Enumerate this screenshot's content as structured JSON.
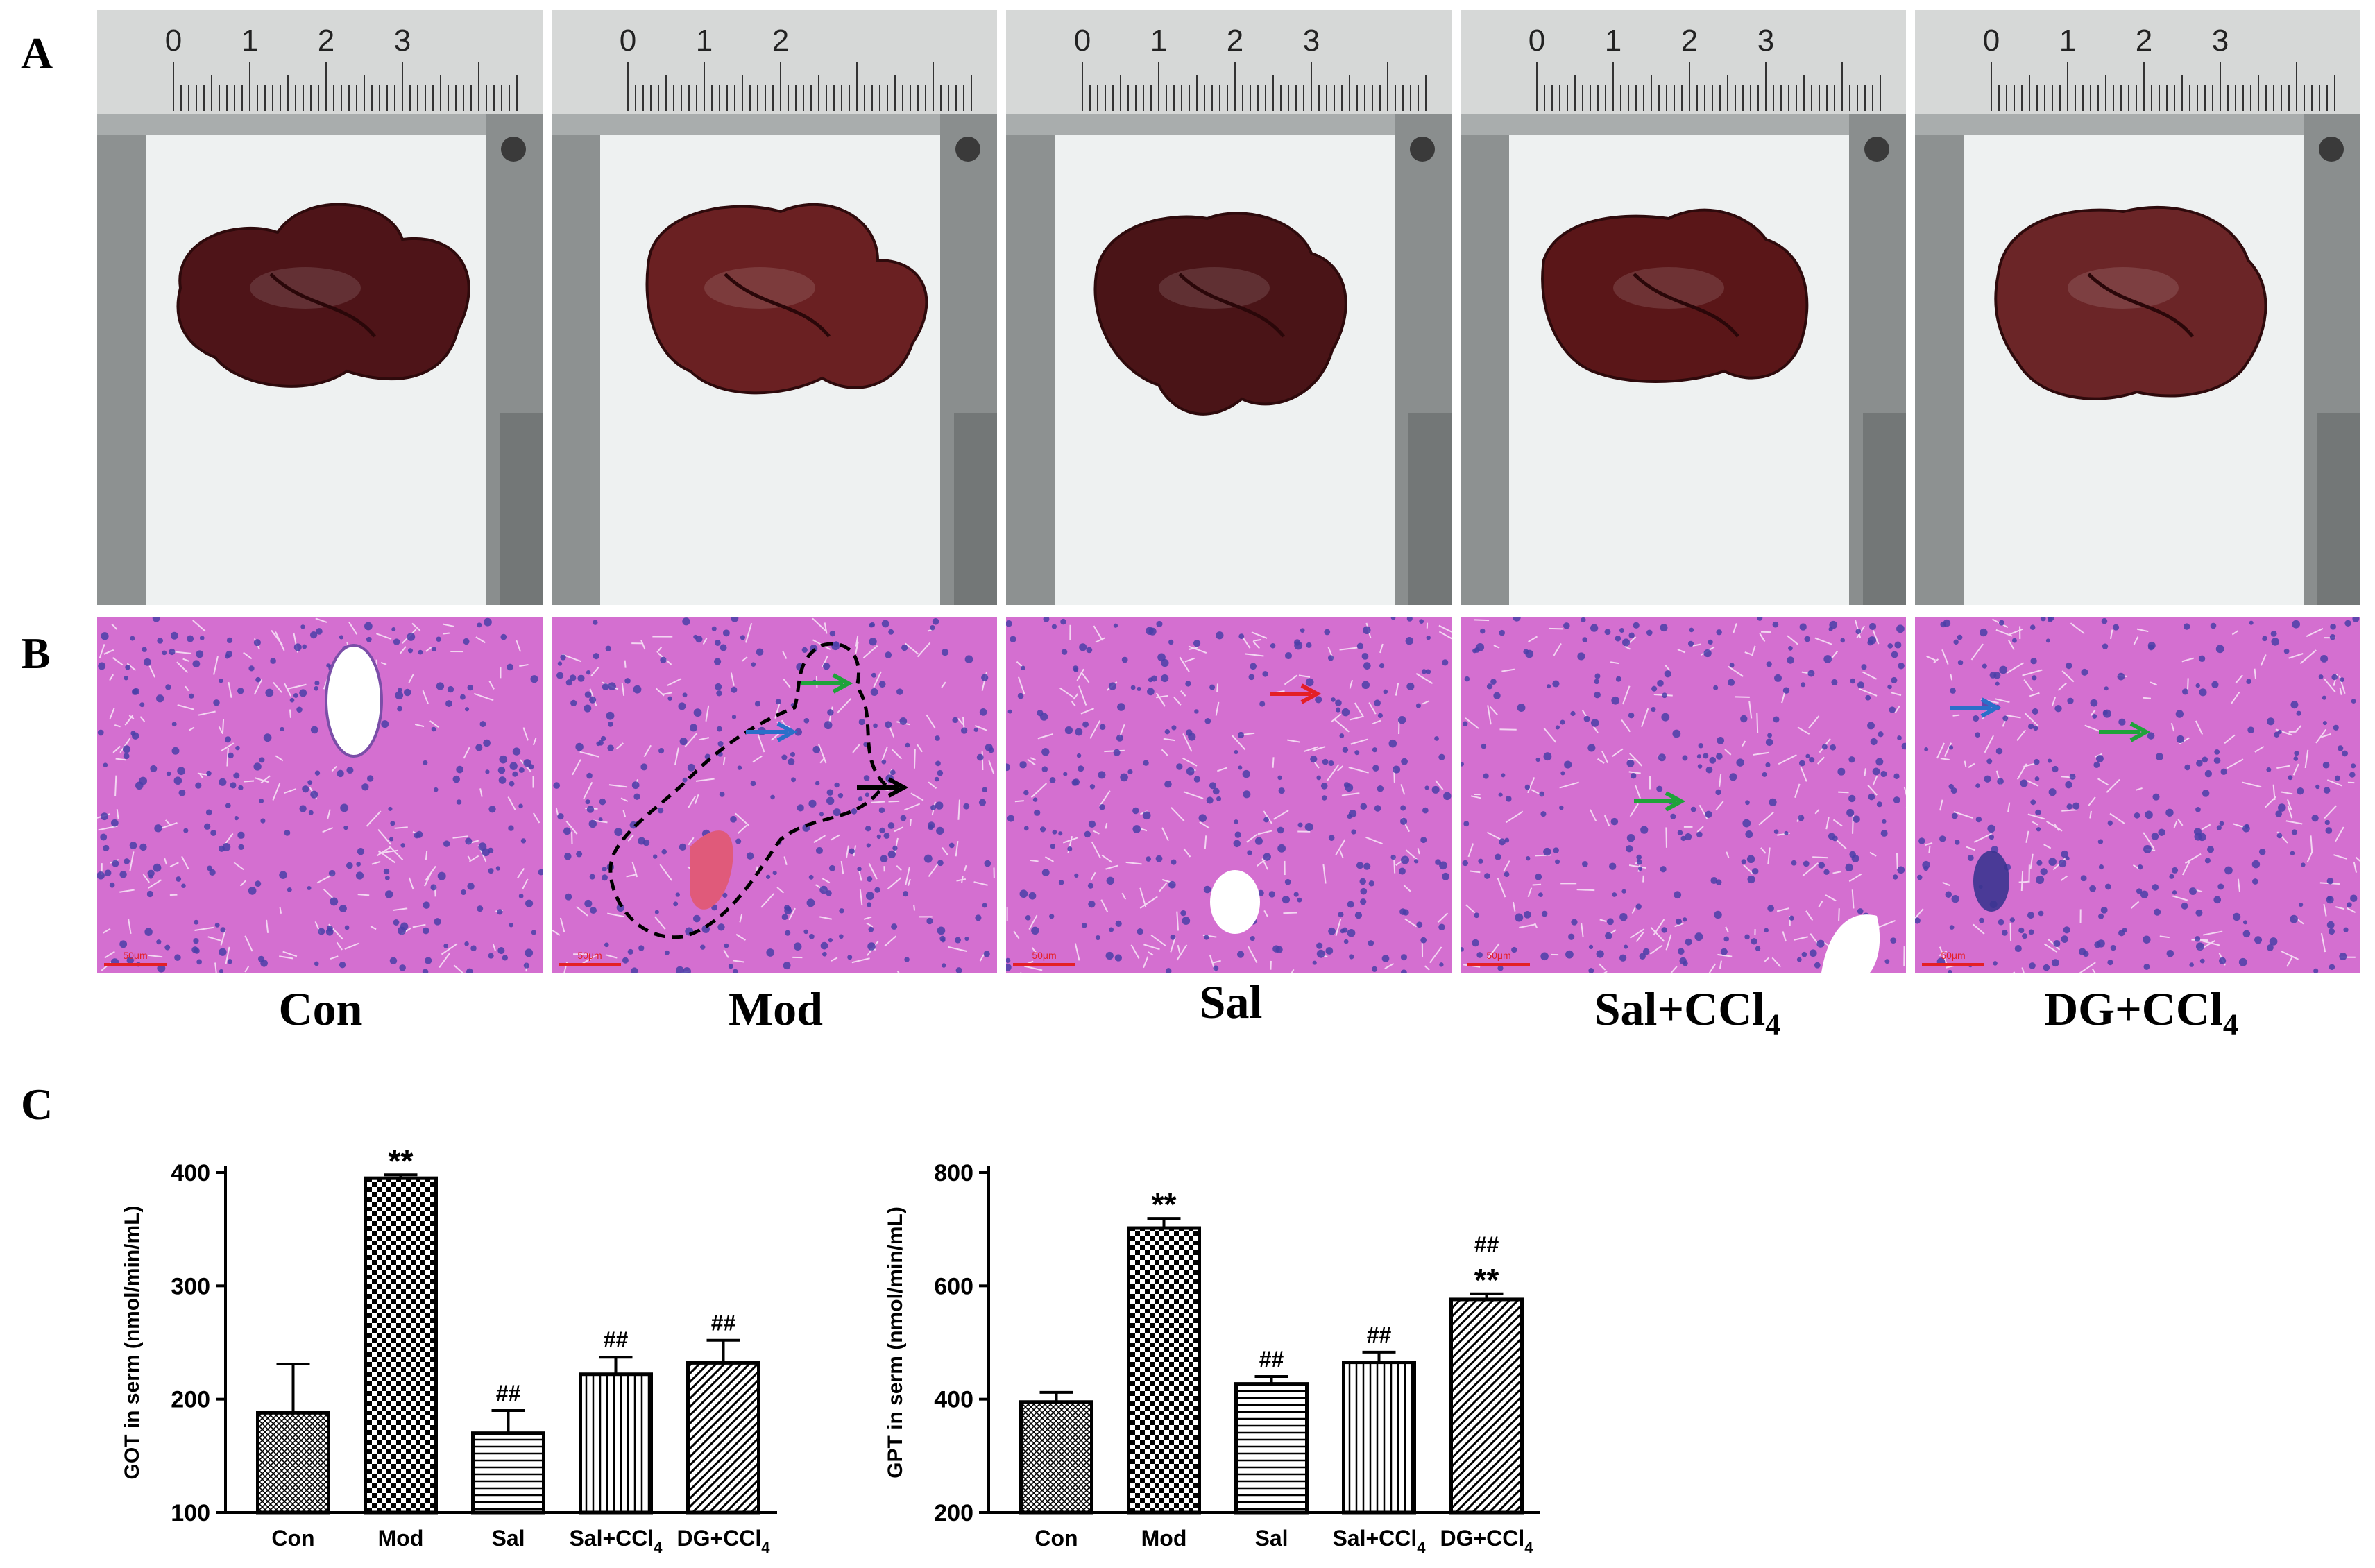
{
  "panels": {
    "a": "A",
    "b": "B",
    "c": "C"
  },
  "groups": [
    {
      "main": "Con",
      "sub": ""
    },
    {
      "main": "Mod",
      "sub": ""
    },
    {
      "main": "Sal",
      "sub": ""
    },
    {
      "main": "Sal+CCl",
      "sub": "4"
    },
    {
      "main": "DG+CCl",
      "sub": "4"
    }
  ],
  "ruler_numbers": [
    [
      "0",
      "1",
      "2",
      "3"
    ],
    [
      "0",
      "1",
      "2"
    ],
    [
      "0",
      "1",
      "2",
      "3"
    ],
    [
      "0",
      "1",
      "2",
      "3"
    ],
    [
      "0",
      "1",
      "2",
      "3"
    ]
  ],
  "scale_bar_text": "50μm",
  "annotation_arrows": [
    [],
    [
      "green",
      "blue",
      "black"
    ],
    [
      "red"
    ],
    [
      "green"
    ],
    [
      "blue",
      "green"
    ]
  ],
  "colors": {
    "green": "#1fa33a",
    "blue": "#2b6fc9",
    "red": "#e41f26",
    "black": "#000000",
    "liver": "#5a1a1c",
    "tissue": "#d46fd0",
    "nucleus": "#4a3fa8"
  },
  "chart_data": [
    {
      "type": "bar",
      "categories": [
        "Con",
        "Mod",
        "Sal",
        "Sal+CCl4",
        "DG+CCl4"
      ],
      "category_labels": [
        {
          "main": "Con",
          "sub": ""
        },
        {
          "main": "Mod",
          "sub": ""
        },
        {
          "main": "Sal",
          "sub": ""
        },
        {
          "main": "Sal+CCl",
          "sub": "4"
        },
        {
          "main": "DG+CCl",
          "sub": "4"
        }
      ],
      "values": [
        188,
        395,
        170,
        222,
        232
      ],
      "errors": [
        43,
        3,
        20,
        15,
        20
      ],
      "patterns": [
        "cross",
        "checker",
        "hlines",
        "vlines",
        "diag"
      ],
      "annotations": [
        [],
        [
          "**"
        ],
        [
          "##"
        ],
        [
          "##"
        ],
        [
          "##"
        ]
      ],
      "ylabel": "GOT in serm (nmol/min/mL)",
      "xlabel": "",
      "ylim": [
        100,
        400
      ],
      "yticks": [
        100,
        200,
        300,
        400
      ]
    },
    {
      "type": "bar",
      "categories": [
        "Con",
        "Mod",
        "Sal",
        "Sal+CCl4",
        "DG+CCl4"
      ],
      "category_labels": [
        {
          "main": "Con",
          "sub": ""
        },
        {
          "main": "Mod",
          "sub": ""
        },
        {
          "main": "Sal",
          "sub": ""
        },
        {
          "main": "Sal+CCl",
          "sub": "4"
        },
        {
          "main": "DG+CCl",
          "sub": "4"
        }
      ],
      "values": [
        395,
        702,
        427,
        465,
        576
      ],
      "errors": [
        17,
        17,
        13,
        18,
        10
      ],
      "patterns": [
        "cross",
        "checker",
        "hlines",
        "vlines",
        "diag"
      ],
      "annotations": [
        [],
        [
          "**"
        ],
        [
          "##"
        ],
        [
          "##"
        ],
        [
          "**",
          "##"
        ]
      ],
      "ylabel": "GPT in serm (nmol/min/mL)",
      "xlabel": "",
      "ylim": [
        200,
        800
      ],
      "yticks": [
        200,
        400,
        600,
        800
      ]
    }
  ]
}
